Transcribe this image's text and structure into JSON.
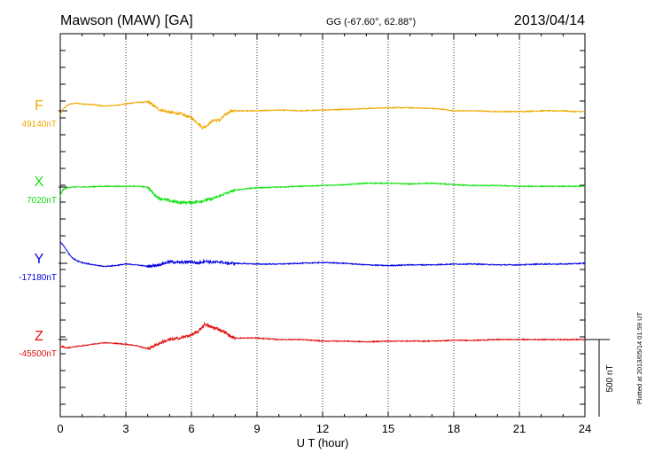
{
  "header": {
    "station": "Mawson (MAW)  [GA]",
    "coords": "GG (-67.60°,  62.88°)",
    "date": "2013/04/14"
  },
  "footer": {
    "plotted": "Plotted at 2013/05/14 01:59 UT"
  },
  "colors": {
    "F": "#f0a800",
    "X": "#10e010",
    "Y": "#0000e0",
    "Z": "#e01010",
    "axis": "#000000"
  },
  "chart_data": {
    "type": "line",
    "xlabel": "U T (hour)",
    "xlim": [
      0,
      24
    ],
    "xticks": [
      0,
      3,
      6,
      9,
      12,
      15,
      18,
      21,
      24
    ],
    "scale_bar": {
      "label": "500 nT",
      "value_nT": 500
    },
    "series": [
      {
        "name": "F",
        "baseline_label": "49140nT",
        "baseline_nT": 49140,
        "x": [
          0,
          0.1,
          0.3,
          0.5,
          0.7,
          1.0,
          1.5,
          2.0,
          2.5,
          3.0,
          3.5,
          3.8,
          4.0,
          4.2,
          4.5,
          5.0,
          5.5,
          6.0,
          6.3,
          6.5,
          6.7,
          7.0,
          7.3,
          7.6,
          7.8,
          8.0,
          9.0,
          10.0,
          11.0,
          12.0,
          13.0,
          14.0,
          15.0,
          16.0,
          17.0,
          17.5,
          18.0,
          19.0,
          20.0,
          21.0,
          22.0,
          23.0,
          23.5,
          24.0
        ],
        "values": [
          -25,
          5,
          35,
          45,
          50,
          45,
          40,
          30,
          35,
          45,
          55,
          55,
          60,
          40,
          10,
          -10,
          -20,
          -45,
          -80,
          -110,
          -95,
          -60,
          -60,
          -20,
          0,
          0,
          0,
          5,
          0,
          5,
          10,
          15,
          20,
          20,
          15,
          10,
          0,
          0,
          -5,
          -5,
          0,
          0,
          -5,
          -5
        ]
      },
      {
        "name": "X",
        "baseline_label": "7020nT",
        "baseline_nT": 7020,
        "x": [
          0,
          0.1,
          0.3,
          0.5,
          1.0,
          2.0,
          3.0,
          3.5,
          4.0,
          4.3,
          4.5,
          5.0,
          5.5,
          6.0,
          6.5,
          7.0,
          7.5,
          8.0,
          8.5,
          9.0,
          10.0,
          11.0,
          12.0,
          13.0,
          14.0,
          15.0,
          16.0,
          17.0,
          18.0,
          19.0,
          20.0,
          21.0,
          22.0,
          23.0,
          24.0
        ],
        "values": [
          -60,
          -20,
          -5,
          0,
          0,
          5,
          5,
          5,
          0,
          -50,
          -70,
          -90,
          -100,
          -100,
          -90,
          -75,
          -45,
          -20,
          -10,
          -5,
          0,
          5,
          10,
          15,
          25,
          25,
          20,
          25,
          15,
          10,
          10,
          5,
          5,
          5,
          5
        ]
      },
      {
        "name": "Y",
        "baseline_label": "-17180nT",
        "baseline_nT": -17180,
        "x": [
          0,
          0.2,
          0.4,
          0.6,
          0.8,
          1.0,
          1.5,
          2.0,
          2.5,
          3.0,
          3.5,
          4.0,
          4.5,
          5.0,
          5.5,
          6.0,
          6.3,
          6.6,
          7.0,
          7.3,
          7.6,
          8.0,
          9.0,
          10.0,
          11.0,
          12.0,
          13.0,
          14.0,
          15.0,
          16.0,
          17.0,
          18.0,
          19.0,
          20.0,
          21.0,
          22.0,
          23.0,
          24.0
        ],
        "values": [
          140,
          105,
          60,
          30,
          15,
          5,
          -10,
          -20,
          -15,
          -5,
          -10,
          -20,
          -10,
          10,
          5,
          10,
          0,
          15,
          5,
          10,
          0,
          0,
          -5,
          -5,
          0,
          5,
          0,
          -10,
          -15,
          -10,
          -10,
          -5,
          -5,
          -10,
          -10,
          -5,
          -5,
          0
        ]
      },
      {
        "name": "Z",
        "baseline_label": "-45500nT",
        "baseline_nT": -45500,
        "x": [
          0,
          0.1,
          0.3,
          0.5,
          1.0,
          1.5,
          2.0,
          2.5,
          3.0,
          3.5,
          4.0,
          4.3,
          4.6,
          5.0,
          5.5,
          6.0,
          6.3,
          6.6,
          6.9,
          7.2,
          7.5,
          7.8,
          8.0,
          9.0,
          10.0,
          11.0,
          12.0,
          13.0,
          14.0,
          15.0,
          16.0,
          17.0,
          18.0,
          19.0,
          20.0,
          21.0,
          22.0,
          23.0,
          24.0
        ],
        "values": [
          -50,
          -45,
          -55,
          -50,
          -40,
          -30,
          -20,
          -25,
          -30,
          -40,
          -60,
          -40,
          -20,
          0,
          10,
          30,
          50,
          100,
          80,
          70,
          50,
          20,
          10,
          10,
          0,
          0,
          -10,
          -10,
          -15,
          -10,
          -10,
          -10,
          -5,
          -5,
          0,
          0,
          0,
          0,
          0
        ]
      }
    ]
  }
}
